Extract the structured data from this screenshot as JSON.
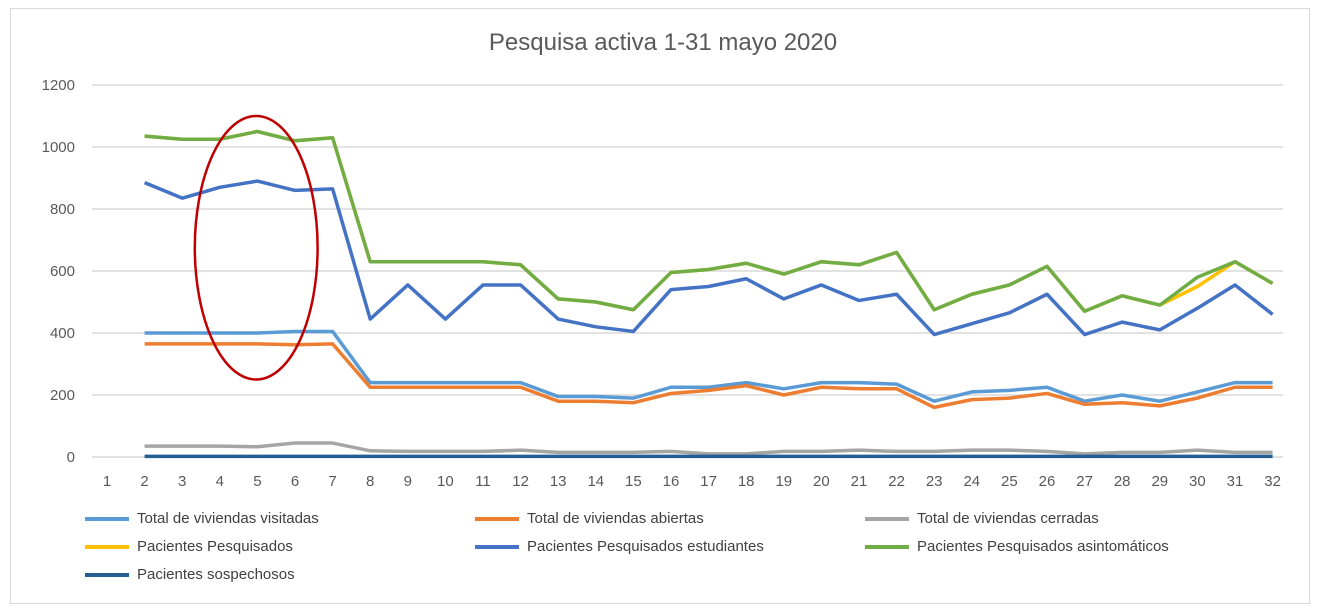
{
  "chart_data": {
    "type": "line",
    "title": "Pesquisa activa 1-31 mayo 2020",
    "xlabel": "",
    "ylabel": "",
    "ylim": [
      0,
      1200
    ],
    "yticks": [
      0,
      200,
      400,
      600,
      800,
      1000,
      1200
    ],
    "grid": true,
    "legend_position": "bottom",
    "categories": [
      "1",
      "2",
      "3",
      "4",
      "5",
      "6",
      "7",
      "8",
      "9",
      "10",
      "11",
      "12",
      "13",
      "14",
      "15",
      "16",
      "17",
      "18",
      "19",
      "20",
      "21",
      "22",
      "23",
      "24",
      "25",
      "26",
      "27",
      "28",
      "29",
      "30",
      "31",
      "32"
    ],
    "series": [
      {
        "name": "Total de viviendas visitadas",
        "color": "#5B9BD5",
        "values": [
          null,
          400,
          400,
          400,
          400,
          405,
          405,
          240,
          240,
          240,
          240,
          240,
          195,
          195,
          190,
          225,
          225,
          240,
          220,
          240,
          240,
          235,
          180,
          210,
          215,
          225,
          180,
          200,
          180,
          210,
          240,
          240
        ]
      },
      {
        "name": "Total de viviendas abiertas",
        "color": "#ED7D31",
        "values": [
          null,
          365,
          365,
          365,
          365,
          362,
          365,
          225,
          225,
          225,
          225,
          225,
          180,
          180,
          175,
          205,
          215,
          230,
          200,
          225,
          220,
          220,
          160,
          185,
          190,
          205,
          170,
          175,
          165,
          190,
          225,
          225
        ]
      },
      {
        "name": "Total de viviendas cerradas",
        "color": "#A5A5A5",
        "values": [
          null,
          35,
          35,
          35,
          33,
          45,
          45,
          20,
          18,
          18,
          18,
          22,
          15,
          15,
          15,
          18,
          10,
          10,
          18,
          18,
          22,
          18,
          18,
          22,
          22,
          18,
          10,
          15,
          15,
          22,
          15,
          15
        ]
      },
      {
        "name": "Pacientes Pesquisados",
        "color": "#FFC000",
        "values": [
          null,
          1035,
          1025,
          1025,
          1050,
          1020,
          1030,
          630,
          630,
          630,
          630,
          620,
          510,
          500,
          475,
          595,
          605,
          625,
          590,
          630,
          620,
          660,
          475,
          525,
          555,
          615,
          470,
          520,
          490,
          550,
          630,
          560
        ]
      },
      {
        "name": "Pacientes Pesquisados estudiantes",
        "color": "#4472C4",
        "values": [
          null,
          885,
          835,
          870,
          890,
          860,
          865,
          445,
          555,
          445,
          555,
          555,
          445,
          420,
          405,
          540,
          550,
          575,
          510,
          555,
          505,
          525,
          395,
          430,
          465,
          525,
          395,
          435,
          410,
          480,
          555,
          460
        ]
      },
      {
        "name": "Pacientes Pesquisados asintomáticos",
        "color": "#70AD47",
        "values": [
          null,
          1035,
          1025,
          1025,
          1050,
          1020,
          1030,
          630,
          630,
          630,
          630,
          620,
          510,
          500,
          475,
          595,
          605,
          625,
          590,
          630,
          620,
          660,
          475,
          525,
          555,
          615,
          470,
          520,
          490,
          580,
          630,
          560
        ]
      },
      {
        "name": "Pacientes sospechosos",
        "color": "#255E91",
        "values": [
          null,
          2,
          2,
          2,
          2,
          2,
          2,
          2,
          2,
          2,
          2,
          2,
          2,
          2,
          2,
          2,
          2,
          2,
          2,
          2,
          2,
          2,
          2,
          2,
          2,
          2,
          2,
          2,
          2,
          2,
          2,
          2
        ]
      }
    ],
    "annotations": [
      {
        "type": "ellipse",
        "color": "#C00000",
        "x_range": [
          "4",
          "7"
        ],
        "y_range": [
          250,
          1100
        ]
      }
    ]
  }
}
